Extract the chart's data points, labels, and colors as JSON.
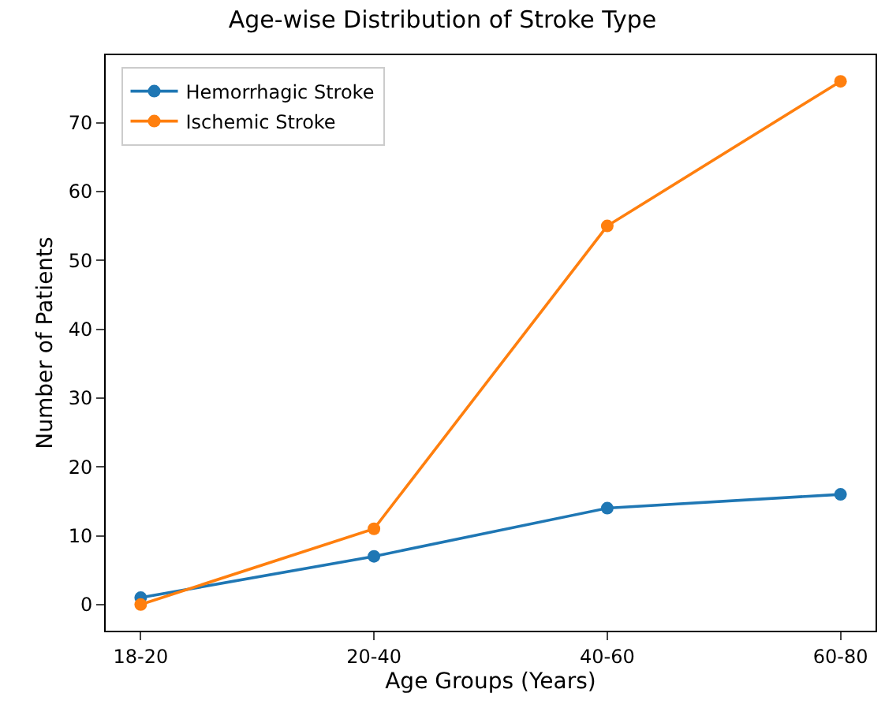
{
  "chart_data": {
    "type": "line",
    "title": "Age-wise Distribution of Stroke Type",
    "xlabel": "Age Groups (Years)",
    "ylabel": "Number of Patients",
    "categories": [
      "18-20",
      "20-40",
      "40-60",
      "60-80"
    ],
    "series": [
      {
        "name": "Hemorrhagic Stroke",
        "color": "#1f77b4",
        "values": [
          1,
          7,
          14,
          16
        ]
      },
      {
        "name": "Ischemic Stroke",
        "color": "#ff7f0e",
        "values": [
          0,
          11,
          55,
          76
        ]
      }
    ],
    "ylim": [
      -3.8,
      79.8
    ],
    "yticks": [
      0,
      10,
      20,
      30,
      40,
      50,
      60,
      70
    ],
    "legend": "top left",
    "marker": "circle",
    "line_style": "solid"
  }
}
